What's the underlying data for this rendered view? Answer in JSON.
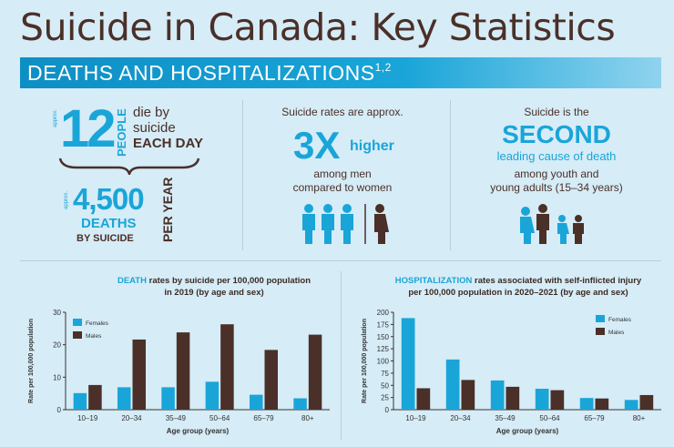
{
  "title": "Suicide in Canada: Key Statistics",
  "banner": {
    "text": "DEATHS AND HOSPITALIZATIONS",
    "sup": "1,2"
  },
  "stat1": {
    "approx1": "approx.",
    "number": "12",
    "people": "PEOPLE",
    "line1": "die by",
    "line2": "suicide",
    "line3": "EACH DAY",
    "approx2": "approx.",
    "number2": "4,500",
    "deaths": "DEATHS",
    "by_suicide": "BY SUICIDE",
    "per_year": "PER YEAR"
  },
  "stat2": {
    "intro": "Suicide rates are approx.",
    "big": "3X",
    "higher": "higher",
    "line1": "among men",
    "line2": "compared to women"
  },
  "stat3": {
    "intro": "Suicide is the",
    "big": "SECOND",
    "leading": "leading cause of death",
    "line1": "among youth and",
    "line2": "young adults (15–34 years)"
  },
  "colors": {
    "female": "#1aa5d8",
    "male": "#4a3028"
  },
  "chart_data": [
    {
      "type": "bar",
      "title_highlight": "DEATH",
      "title_rest": " rates by suicide per 100,000 population",
      "title_line2": "in 2019 (by age and sex)",
      "xlabel": "Age group (years)",
      "ylabel": "Rate per 100,000 population",
      "ylim": [
        0,
        30
      ],
      "yticks": [
        "0",
        "10",
        "20",
        "30"
      ],
      "categories": [
        "10–19",
        "20–34",
        "35–49",
        "50–64",
        "65–79",
        "80+"
      ],
      "series": [
        {
          "name": "Females",
          "values": [
            5.1,
            6.9,
            6.9,
            8.6,
            4.6,
            3.5
          ]
        },
        {
          "name": "Males",
          "values": [
            7.6,
            21.6,
            23.8,
            26.3,
            18.4,
            23.1
          ]
        }
      ]
    },
    {
      "type": "bar",
      "title_highlight": "HOSPITALIZATION",
      "title_rest": " rates associated with self-inflicted injury",
      "title_line2": "per 100,000 population in 2020–2021 (by age and sex)",
      "xlabel": "Age group (years)",
      "ylabel": "Rate per 100,000 population",
      "ylim": [
        0,
        200
      ],
      "yticks": [
        "0",
        "25",
        "50",
        "75",
        "100",
        "125",
        "150",
        "175",
        "200"
      ],
      "categories": [
        "10–19",
        "20–34",
        "35–49",
        "50–64",
        "65–79",
        "80+"
      ],
      "series": [
        {
          "name": "Females",
          "values": [
            188,
            103,
            60,
            43,
            24,
            20
          ]
        },
        {
          "name": "Males",
          "values": [
            44,
            61,
            47,
            40,
            23,
            30
          ]
        }
      ]
    }
  ]
}
